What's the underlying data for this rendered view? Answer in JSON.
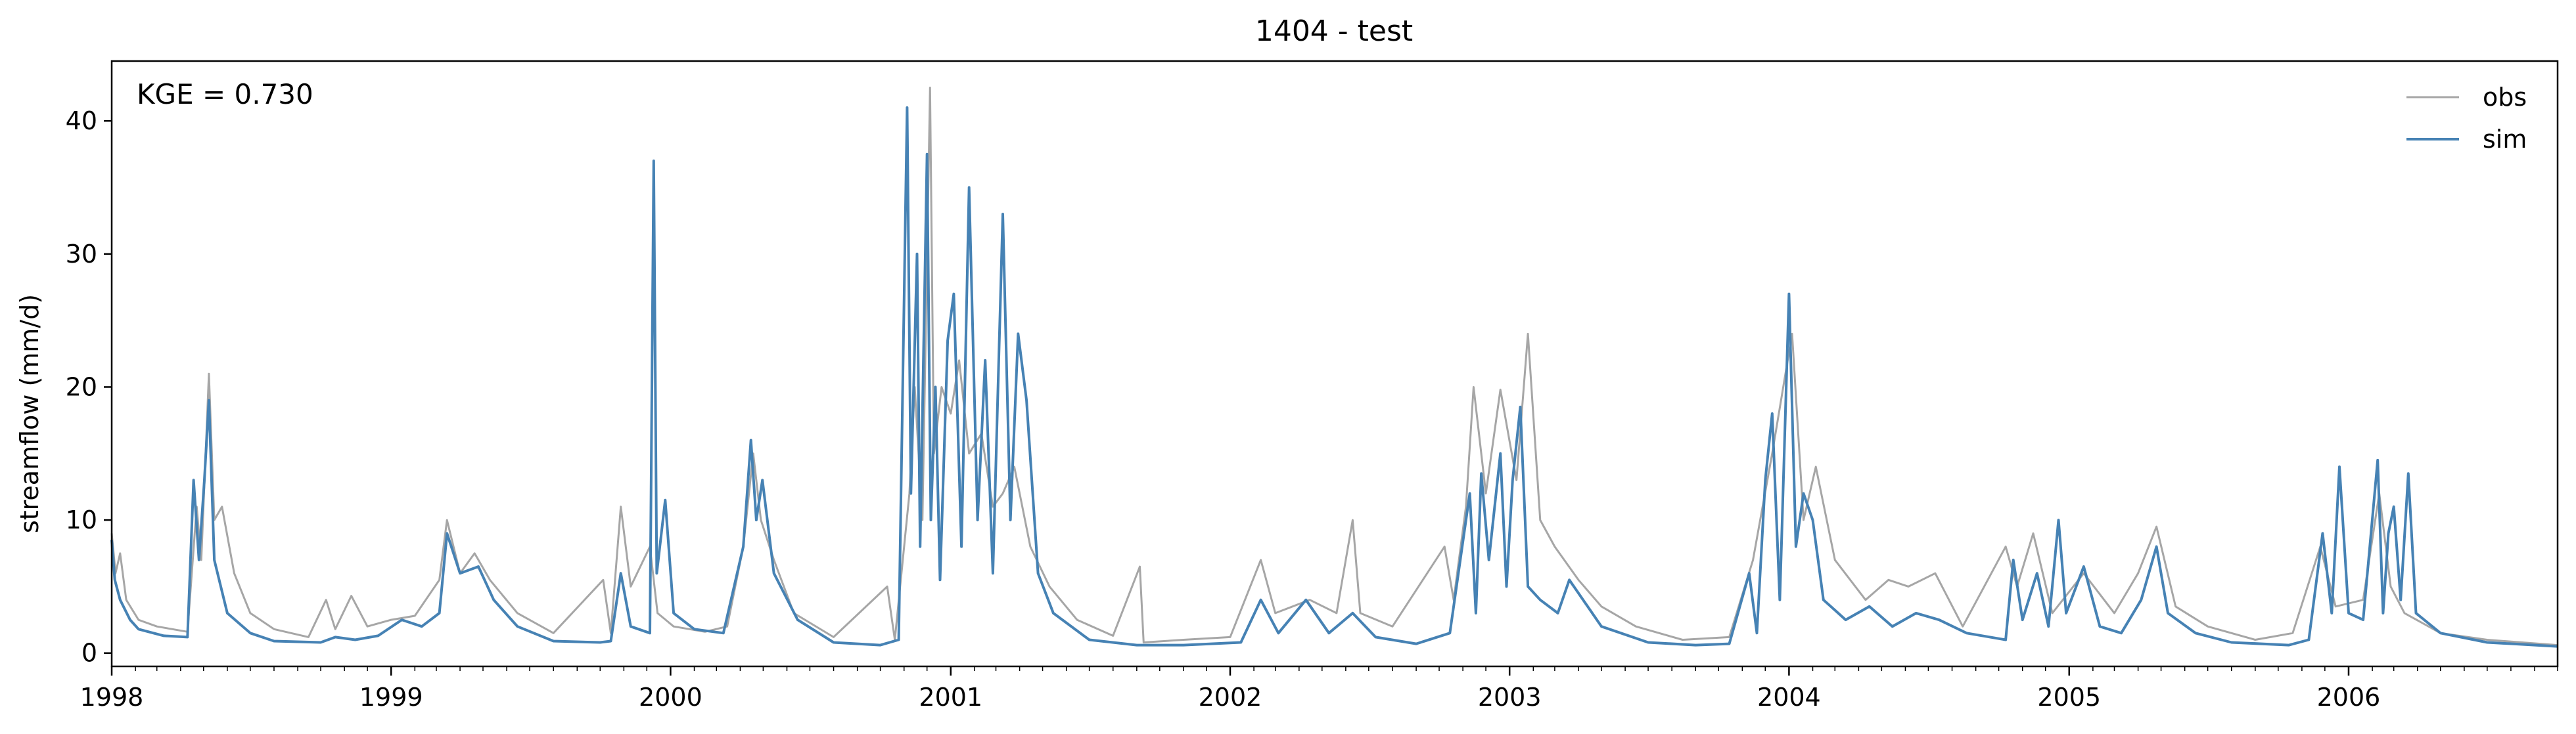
{
  "chart_data": {
    "type": "line",
    "title": "1404 - test",
    "xlabel": "",
    "ylabel": "streamflow (mm/d)",
    "annotation": "KGE = 0.730",
    "xlim": [
      "1998-01-01",
      "2006-10-01"
    ],
    "ylim": [
      -1,
      44.5
    ],
    "x_tick_labels": [
      "1998",
      "1999",
      "2000",
      "2001",
      "2002",
      "2003",
      "2004",
      "2005",
      "2006"
    ],
    "y_ticks": [
      0,
      10,
      20,
      30,
      40
    ],
    "y_tick_labels": [
      "0",
      "10",
      "20",
      "30",
      "40"
    ],
    "grid": false,
    "legend_position": "top-right",
    "series": [
      {
        "name": "obs",
        "color": "#a6a6a6",
        "points": [
          [
            "1998-01-01",
            9.0
          ],
          [
            "1998-01-06",
            6.0
          ],
          [
            "1998-01-12",
            7.5
          ],
          [
            "1998-01-20",
            4.0
          ],
          [
            "1998-02-05",
            2.5
          ],
          [
            "1998-03-01",
            2.0
          ],
          [
            "1998-04-10",
            1.6
          ],
          [
            "1998-04-22",
            11.0
          ],
          [
            "1998-04-28",
            7.0
          ],
          [
            "1998-05-08",
            21.0
          ],
          [
            "1998-05-15",
            10.0
          ],
          [
            "1998-05-25",
            11.0
          ],
          [
            "1998-06-10",
            6.0
          ],
          [
            "1998-07-01",
            3.0
          ],
          [
            "1998-08-01",
            1.8
          ],
          [
            "1998-09-15",
            1.2
          ],
          [
            "1998-10-08",
            4.0
          ],
          [
            "1998-10-20",
            1.8
          ],
          [
            "1998-11-10",
            4.3
          ],
          [
            "1998-12-01",
            2.0
          ],
          [
            "1999-01-01",
            2.5
          ],
          [
            "1999-02-01",
            2.8
          ],
          [
            "1999-03-05",
            5.5
          ],
          [
            "1999-03-15",
            10.0
          ],
          [
            "1999-04-01",
            6.0
          ],
          [
            "1999-04-20",
            7.5
          ],
          [
            "1999-05-10",
            5.5
          ],
          [
            "1999-06-15",
            3.0
          ],
          [
            "1999-08-01",
            1.5
          ],
          [
            "1999-10-05",
            5.5
          ],
          [
            "1999-10-15",
            1.5
          ],
          [
            "1999-10-28",
            11.0
          ],
          [
            "1999-11-10",
            5.0
          ],
          [
            "1999-12-05",
            8.0
          ],
          [
            "1999-12-15",
            3.0
          ],
          [
            "2000-01-05",
            2.0
          ],
          [
            "2000-02-15",
            1.6
          ],
          [
            "2000-03-15",
            2.0
          ],
          [
            "2000-04-05",
            8.0
          ],
          [
            "2000-04-18",
            15.0
          ],
          [
            "2000-04-28",
            10.0
          ],
          [
            "2000-05-15",
            7.0
          ],
          [
            "2000-06-10",
            3.0
          ],
          [
            "2000-08-01",
            1.2
          ],
          [
            "2000-10-10",
            5.0
          ],
          [
            "2000-10-20",
            1.0
          ],
          [
            "2000-11-08",
            12.0
          ],
          [
            "2000-11-15",
            20.0
          ],
          [
            "2000-11-25",
            10.0
          ],
          [
            "2000-12-05",
            42.5
          ],
          [
            "2000-12-10",
            15.0
          ],
          [
            "2000-12-20",
            20.0
          ],
          [
            "2001-01-01",
            18.0
          ],
          [
            "2001-01-12",
            22.0
          ],
          [
            "2001-01-25",
            15.0
          ],
          [
            "2001-02-10",
            16.5
          ],
          [
            "2001-02-25",
            11.0
          ],
          [
            "2001-03-10",
            12.0
          ],
          [
            "2001-03-25",
            14.0
          ],
          [
            "2001-04-15",
            8.0
          ],
          [
            "2001-05-10",
            5.0
          ],
          [
            "2001-06-15",
            2.5
          ],
          [
            "2001-08-01",
            1.3
          ],
          [
            "2001-09-05",
            6.5
          ],
          [
            "2001-09-10",
            0.8
          ],
          [
            "2001-11-01",
            1.0
          ],
          [
            "2002-01-01",
            1.2
          ],
          [
            "2002-02-10",
            7.0
          ],
          [
            "2002-03-01",
            3.0
          ],
          [
            "2002-04-15",
            4.0
          ],
          [
            "2002-05-20",
            3.0
          ],
          [
            "2002-06-10",
            10.0
          ],
          [
            "2002-06-20",
            3.0
          ],
          [
            "2002-08-01",
            2.0
          ],
          [
            "2002-10-08",
            8.0
          ],
          [
            "2002-10-20",
            4.0
          ],
          [
            "2002-11-05",
            11.0
          ],
          [
            "2002-11-15",
            20.0
          ],
          [
            "2002-12-01",
            12.0
          ],
          [
            "2002-12-20",
            19.8
          ],
          [
            "2003-01-10",
            13.0
          ],
          [
            "2003-01-25",
            24.0
          ],
          [
            "2003-02-10",
            10.0
          ],
          [
            "2003-03-01",
            8.0
          ],
          [
            "2003-04-01",
            5.5
          ],
          [
            "2003-05-01",
            3.5
          ],
          [
            "2003-06-15",
            2.0
          ],
          [
            "2003-08-15",
            1.0
          ],
          [
            "2003-10-15",
            1.2
          ],
          [
            "2003-11-15",
            7.0
          ],
          [
            "2003-12-10",
            15.0
          ],
          [
            "2004-01-05",
            24.0
          ],
          [
            "2004-01-20",
            10.0
          ],
          [
            "2004-02-05",
            14.0
          ],
          [
            "2004-03-01",
            7.0
          ],
          [
            "2004-04-10",
            4.0
          ],
          [
            "2004-05-10",
            5.5
          ],
          [
            "2004-06-05",
            5.0
          ],
          [
            "2004-07-10",
            6.0
          ],
          [
            "2004-08-15",
            2.0
          ],
          [
            "2004-10-10",
            8.0
          ],
          [
            "2004-10-25",
            5.0
          ],
          [
            "2004-11-15",
            9.0
          ],
          [
            "2004-12-10",
            3.0
          ],
          [
            "2005-01-20",
            6.0
          ],
          [
            "2005-03-01",
            3.0
          ],
          [
            "2005-04-01",
            6.0
          ],
          [
            "2005-04-25",
            9.5
          ],
          [
            "2005-05-20",
            3.5
          ],
          [
            "2005-07-01",
            2.0
          ],
          [
            "2005-09-01",
            1.0
          ],
          [
            "2005-10-20",
            1.5
          ],
          [
            "2005-11-25",
            8.0
          ],
          [
            "2005-12-15",
            3.5
          ],
          [
            "2006-01-20",
            4.0
          ],
          [
            "2006-02-10",
            12.0
          ],
          [
            "2006-02-25",
            5.0
          ],
          [
            "2006-03-15",
            3.0
          ],
          [
            "2006-05-01",
            1.5
          ],
          [
            "2006-07-01",
            1.0
          ],
          [
            "2006-10-01",
            0.6
          ]
        ]
      },
      {
        "name": "sim",
        "color": "#4682b4",
        "points": [
          [
            "1998-01-01",
            8.5
          ],
          [
            "1998-01-05",
            5.5
          ],
          [
            "1998-01-12",
            4.0
          ],
          [
            "1998-01-25",
            2.5
          ],
          [
            "1998-02-05",
            1.8
          ],
          [
            "1998-03-10",
            1.3
          ],
          [
            "1998-04-10",
            1.2
          ],
          [
            "1998-04-18",
            13.0
          ],
          [
            "1998-04-25",
            7.0
          ],
          [
            "1998-05-02",
            13.0
          ],
          [
            "1998-05-08",
            19.0
          ],
          [
            "1998-05-15",
            7.0
          ],
          [
            "1998-06-01",
            3.0
          ],
          [
            "1998-07-01",
            1.5
          ],
          [
            "1998-08-01",
            0.9
          ],
          [
            "1998-10-01",
            0.8
          ],
          [
            "1998-10-20",
            1.2
          ],
          [
            "1998-11-15",
            1.0
          ],
          [
            "1998-12-15",
            1.3
          ],
          [
            "1999-01-15",
            2.5
          ],
          [
            "1999-02-10",
            2.0
          ],
          [
            "1999-03-05",
            3.0
          ],
          [
            "1999-03-15",
            9.0
          ],
          [
            "1999-04-01",
            6.0
          ],
          [
            "1999-04-25",
            6.5
          ],
          [
            "1999-05-15",
            4.0
          ],
          [
            "1999-06-15",
            2.0
          ],
          [
            "1999-08-01",
            0.9
          ],
          [
            "1999-10-01",
            0.8
          ],
          [
            "1999-10-15",
            0.9
          ],
          [
            "1999-10-28",
            6.0
          ],
          [
            "1999-11-10",
            2.0
          ],
          [
            "1999-12-05",
            1.5
          ],
          [
            "1999-12-10",
            37.0
          ],
          [
            "1999-12-14",
            6.0
          ],
          [
            "1999-12-25",
            11.5
          ],
          [
            "2000-01-05",
            3.0
          ],
          [
            "2000-02-01",
            1.8
          ],
          [
            "2000-03-10",
            1.5
          ],
          [
            "2000-04-05",
            8.0
          ],
          [
            "2000-04-15",
            16.0
          ],
          [
            "2000-04-22",
            10.0
          ],
          [
            "2000-04-30",
            13.0
          ],
          [
            "2000-05-15",
            6.0
          ],
          [
            "2000-06-15",
            2.5
          ],
          [
            "2000-08-01",
            0.8
          ],
          [
            "2000-10-01",
            0.6
          ],
          [
            "2000-10-25",
            1.0
          ],
          [
            "2000-11-05",
            41.0
          ],
          [
            "2000-11-10",
            12.0
          ],
          [
            "2000-11-18",
            30.0
          ],
          [
            "2000-11-22",
            8.0
          ],
          [
            "2000-12-01",
            37.5
          ],
          [
            "2000-12-06",
            10.0
          ],
          [
            "2000-12-12",
            20.0
          ],
          [
            "2000-12-18",
            5.5
          ],
          [
            "2000-12-28",
            23.5
          ],
          [
            "2001-01-05",
            27.0
          ],
          [
            "2001-01-15",
            8.0
          ],
          [
            "2001-01-25",
            35.0
          ],
          [
            "2001-02-05",
            10.0
          ],
          [
            "2001-02-15",
            22.0
          ],
          [
            "2001-02-25",
            6.0
          ],
          [
            "2001-03-10",
            33.0
          ],
          [
            "2001-03-20",
            10.0
          ],
          [
            "2001-03-30",
            24.0
          ],
          [
            "2001-04-10",
            19.0
          ],
          [
            "2001-04-25",
            6.0
          ],
          [
            "2001-05-15",
            3.0
          ],
          [
            "2001-07-01",
            1.0
          ],
          [
            "2001-09-01",
            0.6
          ],
          [
            "2001-11-01",
            0.6
          ],
          [
            "2002-01-15",
            0.8
          ],
          [
            "2002-02-10",
            4.0
          ],
          [
            "2002-03-05",
            1.5
          ],
          [
            "2002-04-10",
            4.0
          ],
          [
            "2002-05-10",
            1.5
          ],
          [
            "2002-06-10",
            3.0
          ],
          [
            "2002-07-10",
            1.2
          ],
          [
            "2002-09-01",
            0.7
          ],
          [
            "2002-10-15",
            1.5
          ],
          [
            "2002-11-10",
            12.0
          ],
          [
            "2002-11-18",
            3.0
          ],
          [
            "2002-11-25",
            13.5
          ],
          [
            "2002-12-05",
            7.0
          ],
          [
            "2002-12-20",
            15.0
          ],
          [
            "2002-12-28",
            5.0
          ],
          [
            "2003-01-05",
            13.0
          ],
          [
            "2003-01-15",
            18.5
          ],
          [
            "2003-01-25",
            5.0
          ],
          [
            "2003-02-10",
            4.0
          ],
          [
            "2003-03-05",
            3.0
          ],
          [
            "2003-03-20",
            5.5
          ],
          [
            "2003-05-01",
            2.0
          ],
          [
            "2003-07-01",
            0.8
          ],
          [
            "2003-09-01",
            0.6
          ],
          [
            "2003-10-15",
            0.7
          ],
          [
            "2003-11-10",
            6.0
          ],
          [
            "2003-11-20",
            1.5
          ],
          [
            "2003-12-01",
            13.0
          ],
          [
            "2003-12-10",
            18.0
          ],
          [
            "2003-12-20",
            4.0
          ],
          [
            "2004-01-01",
            27.0
          ],
          [
            "2004-01-10",
            8.0
          ],
          [
            "2004-01-20",
            12.0
          ],
          [
            "2004-02-01",
            10.0
          ],
          [
            "2004-02-15",
            4.0
          ],
          [
            "2004-03-15",
            2.5
          ],
          [
            "2004-04-15",
            3.5
          ],
          [
            "2004-05-15",
            2.0
          ],
          [
            "2004-06-15",
            3.0
          ],
          [
            "2004-07-15",
            2.5
          ],
          [
            "2004-08-20",
            1.5
          ],
          [
            "2004-10-10",
            1.0
          ],
          [
            "2004-10-20",
            7.0
          ],
          [
            "2004-11-01",
            2.5
          ],
          [
            "2004-11-20",
            6.0
          ],
          [
            "2004-12-05",
            2.0
          ],
          [
            "2004-12-18",
            10.0
          ],
          [
            "2004-12-28",
            3.0
          ],
          [
            "2005-01-20",
            6.5
          ],
          [
            "2005-02-10",
            2.0
          ],
          [
            "2005-03-10",
            1.5
          ],
          [
            "2005-04-05",
            4.0
          ],
          [
            "2005-04-25",
            8.0
          ],
          [
            "2005-05-10",
            3.0
          ],
          [
            "2005-06-15",
            1.5
          ],
          [
            "2005-08-01",
            0.8
          ],
          [
            "2005-10-15",
            0.6
          ],
          [
            "2005-11-10",
            1.0
          ],
          [
            "2005-11-28",
            9.0
          ],
          [
            "2005-12-10",
            3.0
          ],
          [
            "2005-12-20",
            14.0
          ],
          [
            "2006-01-01",
            3.0
          ],
          [
            "2006-01-20",
            2.5
          ],
          [
            "2006-02-08",
            14.5
          ],
          [
            "2006-02-15",
            3.0
          ],
          [
            "2006-02-22",
            9.0
          ],
          [
            "2006-03-01",
            11.0
          ],
          [
            "2006-03-10",
            4.0
          ],
          [
            "2006-03-20",
            13.5
          ],
          [
            "2006-03-30",
            3.0
          ],
          [
            "2006-05-01",
            1.5
          ],
          [
            "2006-07-01",
            0.8
          ],
          [
            "2006-10-01",
            0.5
          ]
        ]
      }
    ]
  }
}
